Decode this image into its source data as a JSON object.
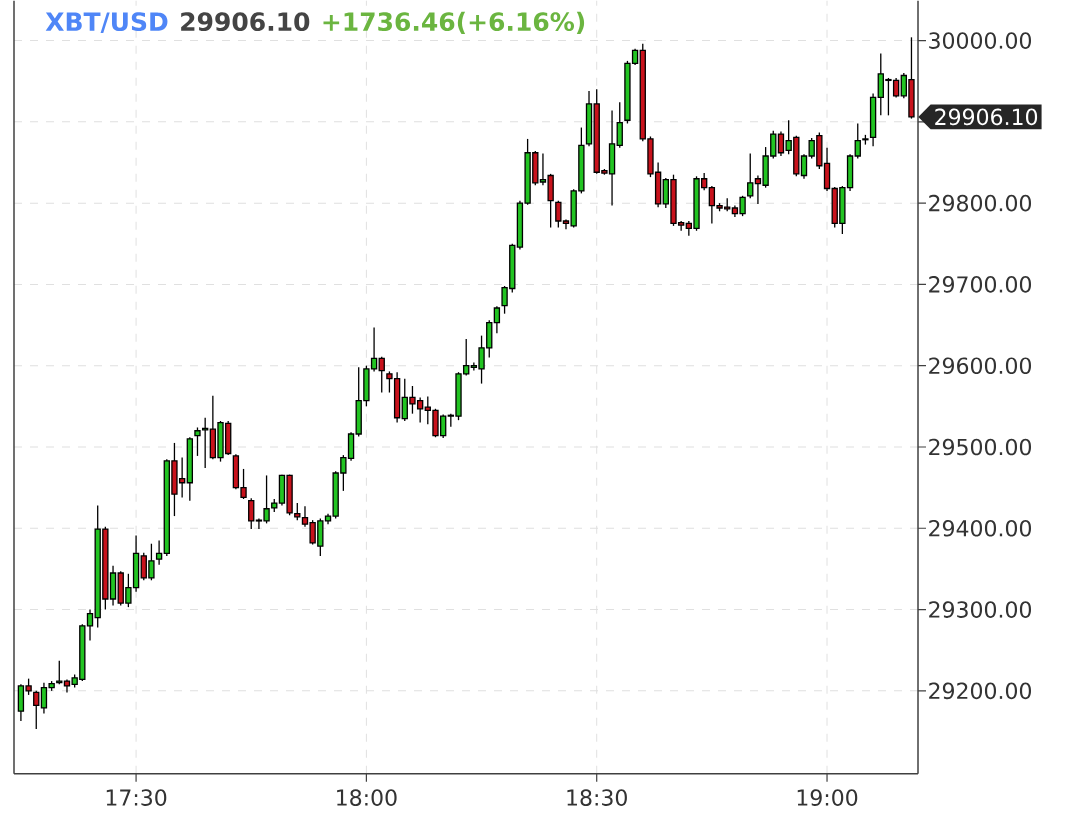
{
  "chart_data": {
    "type": "candlestick",
    "title": "XBT/USD",
    "subtitle": "29906.10",
    "annotations": [
      "+1736.46(+6.16%)",
      "29906.10"
    ],
    "x": [
      17.25,
      17.2667,
      17.2833,
      17.3,
      17.3167,
      17.3333,
      17.35,
      17.3667,
      17.3833,
      17.4,
      17.4167,
      17.4333,
      17.45,
      17.4667,
      17.4833,
      17.5,
      17.5167,
      17.5333,
      17.55,
      17.5667,
      17.5833,
      17.6,
      17.6167,
      17.6333,
      17.65,
      17.6667,
      17.6833,
      17.7,
      17.7167,
      17.7333,
      17.75,
      17.7667,
      17.7833,
      17.8,
      17.8167,
      17.8333,
      17.85,
      17.8667,
      17.8833,
      17.9,
      17.9167,
      17.9333,
      17.95,
      17.9667,
      17.9833,
      18,
      18.0167,
      18.0333,
      18.05,
      18.0667,
      18.0833,
      18.1,
      18.1167,
      18.1333,
      18.15,
      18.1667,
      18.1833,
      18.2,
      18.2167,
      18.2333,
      18.25,
      18.2667,
      18.2833,
      18.3,
      18.3167,
      18.3333,
      18.35,
      18.3667,
      18.3833,
      18.4,
      18.4167,
      18.4333,
      18.45,
      18.4667,
      18.4833,
      18.5,
      18.5167,
      18.5333,
      18.55,
      18.5667,
      18.5833,
      18.6,
      18.6167,
      18.6333,
      18.65,
      18.6667,
      18.6833,
      18.7,
      18.7167,
      18.7333,
      18.75,
      18.7667,
      18.7833,
      18.8,
      18.8167,
      18.8333,
      18.85,
      18.8667,
      18.8833,
      18.9,
      18.9167,
      18.9333,
      18.95,
      18.9667,
      18.9833,
      19,
      19.0167,
      19.0333,
      19.05,
      19.0667,
      19.0833,
      19.1,
      19.1167,
      19.1333,
      19.15,
      19.1667,
      19.1833
    ],
    "ohlc": [
      [
        29175,
        29208,
        29163,
        29206
      ],
      [
        29206,
        29215,
        29195,
        29200
      ],
      [
        29198,
        29200,
        29153,
        29182
      ],
      [
        29179,
        29210,
        29172,
        29204
      ],
      [
        29204,
        29212,
        29200,
        29209
      ],
      [
        29210,
        29237,
        29208,
        29212
      ],
      [
        29212,
        29214,
        29198,
        29206
      ],
      [
        29208,
        29220,
        29204,
        29216
      ],
      [
        29214,
        29282,
        29212,
        29280
      ],
      [
        29280,
        29300,
        29262,
        29295
      ],
      [
        29290,
        29428,
        29278,
        29399
      ],
      [
        29399,
        29402,
        29300,
        29313
      ],
      [
        29313,
        29354,
        29305,
        29345
      ],
      [
        29345,
        29347,
        29305,
        29308
      ],
      [
        29308,
        29344,
        29303,
        29327
      ],
      [
        29327,
        29391,
        29322,
        29369
      ],
      [
        29366,
        29370,
        29336,
        29339
      ],
      [
        29339,
        29381,
        29336,
        29360
      ],
      [
        29362,
        29385,
        29355,
        29369
      ],
      [
        29369,
        29485,
        29366,
        29483
      ],
      [
        29483,
        29505,
        29415,
        29442
      ],
      [
        29461,
        29487,
        29438,
        29456
      ],
      [
        29456,
        29512,
        29434,
        29510
      ],
      [
        29514,
        29524,
        29489,
        29520
      ],
      [
        29521,
        29536,
        29474,
        29523
      ],
      [
        29522,
        29563,
        29485,
        29487
      ],
      [
        29487,
        29532,
        29482,
        29530
      ],
      [
        29529,
        29532,
        29490,
        29492
      ],
      [
        29489,
        29491,
        29448,
        29450
      ],
      [
        29450,
        29473,
        29436,
        29438
      ],
      [
        29434,
        29437,
        29399,
        29409
      ],
      [
        29410,
        29412,
        29399,
        29409
      ],
      [
        29409,
        29465,
        29406,
        29424
      ],
      [
        29425,
        29436,
        29420,
        29431
      ],
      [
        29431,
        29466,
        29428,
        29465
      ],
      [
        29465,
        29466,
        29416,
        29419
      ],
      [
        29418,
        29431,
        29410,
        29414
      ],
      [
        29413,
        29427,
        29402,
        29405
      ],
      [
        29407,
        29410,
        29380,
        29382
      ],
      [
        29378,
        29412,
        29366,
        29409
      ],
      [
        29409,
        29418,
        29405,
        29415
      ],
      [
        29415,
        29470,
        29412,
        29468
      ],
      [
        29468,
        29490,
        29446,
        29487
      ],
      [
        29486,
        29518,
        29483,
        29516
      ],
      [
        29516,
        29598,
        29513,
        29557
      ],
      [
        29557,
        29600,
        29550,
        29596
      ],
      [
        29596,
        29647,
        29593,
        29609
      ],
      [
        29609,
        29611,
        29567,
        29594
      ],
      [
        29590,
        29593,
        29567,
        29584
      ],
      [
        29584,
        29592,
        29530,
        29536
      ],
      [
        29535,
        29584,
        29532,
        29561
      ],
      [
        29561,
        29575,
        29541,
        29553
      ],
      [
        29557,
        29561,
        29530,
        29547
      ],
      [
        29549,
        29562,
        29528,
        29545
      ],
      [
        29545,
        29547,
        29512,
        29514
      ],
      [
        29514,
        29540,
        29511,
        29538
      ],
      [
        29538,
        29541,
        29525,
        29539
      ],
      [
        29538,
        29592,
        29533,
        29590
      ],
      [
        29590,
        29633,
        29588,
        29600
      ],
      [
        29598,
        29604,
        29594,
        29600
      ],
      [
        29596,
        29637,
        29578,
        29622
      ],
      [
        29622,
        29656,
        29610,
        29653
      ],
      [
        29653,
        29673,
        29640,
        29671
      ],
      [
        29674,
        29698,
        29664,
        29696
      ],
      [
        29695,
        29750,
        29690,
        29748
      ],
      [
        29746,
        29803,
        29743,
        29800
      ],
      [
        29800,
        29879,
        29798,
        29862
      ],
      [
        29862,
        29864,
        29822,
        29825
      ],
      [
        29826,
        29861,
        29822,
        29829
      ],
      [
        29834,
        29836,
        29770,
        29803
      ],
      [
        29801,
        29803,
        29770,
        29778
      ],
      [
        29778,
        29780,
        29768,
        29775
      ],
      [
        29772,
        29817,
        29770,
        29815
      ],
      [
        29815,
        29893,
        29812,
        29871
      ],
      [
        29873,
        29938,
        29870,
        29922
      ],
      [
        29922,
        29940,
        29836,
        29838
      ],
      [
        29840,
        29842,
        29835,
        29837
      ],
      [
        29836,
        29914,
        29797,
        29873
      ],
      [
        29871,
        29924,
        29868,
        29899
      ],
      [
        29902,
        29975,
        29898,
        29972
      ],
      [
        29972,
        29990,
        29970,
        29988
      ],
      [
        29988,
        29996,
        29876,
        29879
      ],
      [
        29879,
        29882,
        29832,
        29836
      ],
      [
        29838,
        29850,
        29795,
        29799
      ],
      [
        29799,
        29831,
        29794,
        29829
      ],
      [
        29829,
        29835,
        29772,
        29775
      ],
      [
        29776,
        29778,
        29766,
        29773
      ],
      [
        29775,
        29778,
        29760,
        29769
      ],
      [
        29769,
        29833,
        29766,
        29830
      ],
      [
        29830,
        29837,
        29816,
        29819
      ],
      [
        29819,
        29821,
        29775,
        29797
      ],
      [
        29797,
        29800,
        29790,
        29794
      ],
      [
        29795,
        29806,
        29790,
        29793
      ],
      [
        29794,
        29797,
        29783,
        29787
      ],
      [
        29787,
        29809,
        29784,
        29807
      ],
      [
        29809,
        29861,
        29806,
        29825
      ],
      [
        29830,
        29834,
        29799,
        29824
      ],
      [
        29822,
        29869,
        29819,
        29858
      ],
      [
        29858,
        29889,
        29855,
        29885
      ],
      [
        29885,
        29888,
        29858,
        29862
      ],
      [
        29865,
        29902,
        29860,
        29877
      ],
      [
        29881,
        29883,
        29833,
        29836
      ],
      [
        29834,
        29860,
        29830,
        29858
      ],
      [
        29858,
        29880,
        29855,
        29877
      ],
      [
        29883,
        29887,
        29842,
        29846
      ],
      [
        29849,
        29868,
        29815,
        29818
      ],
      [
        29818,
        29820,
        29770,
        29775
      ],
      [
        29775,
        29821,
        29762,
        29819
      ],
      [
        29819,
        29860,
        29815,
        29858
      ],
      [
        29858,
        29898,
        29855,
        29877
      ],
      [
        29878,
        29884,
        29872,
        29879
      ],
      [
        29881,
        29935,
        29870,
        29930
      ],
      [
        29930,
        29984,
        29908,
        29959
      ],
      [
        29952,
        29954,
        29908,
        29951
      ],
      [
        29951,
        29954,
        29930,
        29932
      ],
      [
        29932,
        29960,
        29929,
        29957
      ],
      [
        29952,
        30004,
        29904,
        29906.1
      ]
    ],
    "xlim": [
      17.235,
      19.1975
    ],
    "ylim": [
      29098,
      30049
    ],
    "xticks": [
      {
        "value": 17.5,
        "label": "17:30"
      },
      {
        "value": 18,
        "label": "18:00"
      },
      {
        "value": 18.5,
        "label": "18:30"
      },
      {
        "value": 19,
        "label": "19:00"
      }
    ],
    "yticks": [
      {
        "value": 29200,
        "label": "29200.00"
      },
      {
        "value": 29300,
        "label": "29300.00"
      },
      {
        "value": 29400,
        "label": "29400.00"
      },
      {
        "value": 29500,
        "label": "29500.00"
      },
      {
        "value": 29600,
        "label": "29600.00"
      },
      {
        "value": 29700,
        "label": "29700.00"
      },
      {
        "value": 29800,
        "label": "29800.00"
      },
      {
        "value": 29900,
        "label": null
      },
      {
        "value": 30000,
        "label": "30000.00"
      }
    ],
    "grid": true
  }
}
